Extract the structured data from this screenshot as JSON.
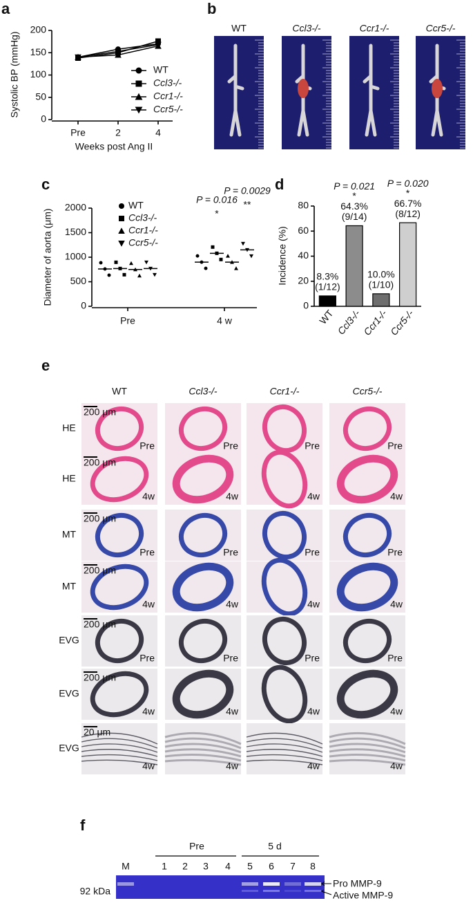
{
  "panel_labels": [
    "a",
    "b",
    "c",
    "d",
    "e",
    "f"
  ],
  "chart_data": [
    {
      "type": "line",
      "ylabel": "Systolic BP (mmHg)",
      "xlabel": "Weeks post Ang II",
      "categories": [
        "Pre",
        "2",
        "4"
      ],
      "ylim": [
        0,
        200
      ],
      "yticks": [
        0,
        50,
        100,
        150,
        200
      ],
      "series": [
        {
          "name": "WT",
          "marker": "circle",
          "color": "#000000",
          "values": [
            140,
            158,
            170
          ]
        },
        {
          "name": "Ccl3-/-",
          "marker": "square",
          "color": "#000000",
          "values": [
            138,
            150,
            176
          ]
        },
        {
          "name": "Ccr1-/-",
          "marker": "triangle",
          "color": "#000000",
          "values": [
            140,
            145,
            165
          ]
        },
        {
          "name": "Ccr5-/-",
          "marker": "triangle-down",
          "color": "#000000",
          "values": [
            140,
            153,
            168
          ]
        }
      ]
    },
    {
      "type": "dot",
      "ylabel": "Diameter of aorta (μm)",
      "categories": [
        "Pre",
        "4 w"
      ],
      "ylim": [
        0,
        2000
      ],
      "yticks": [
        0,
        500,
        1000,
        1500,
        2000
      ],
      "series": [
        {
          "name": "WT",
          "marker": "circle",
          "color": "#000000",
          "values": [
            760,
            900
          ]
        },
        {
          "name": "Ccl3-/-",
          "marker": "square",
          "color": "#000000",
          "values": [
            770,
            1080
          ],
          "p_label": "P = 0.016",
          "sig": "*"
        },
        {
          "name": "Ccr1-/-",
          "marker": "triangle",
          "color": "#000000",
          "values": [
            750,
            900
          ]
        },
        {
          "name": "Ccr5-/-",
          "marker": "triangle-down",
          "color": "#000000",
          "values": [
            770,
            1150
          ],
          "p_label": "P = 0.0029",
          "sig": "**"
        }
      ]
    },
    {
      "type": "bar",
      "ylabel": "Incidence (%)",
      "categories": [
        "WT",
        "Ccl3-/-",
        "Ccr1-/-",
        "Ccr5-/-"
      ],
      "values": [
        8.3,
        64.3,
        10.0,
        66.7
      ],
      "value_labels": [
        "8.3%",
        "64.3%",
        "10.0%",
        "66.7%"
      ],
      "counts": [
        "(1/12)",
        "(9/14)",
        "(1/10)",
        "(8/12)"
      ],
      "colors": [
        "#000000",
        "#8c8c8c",
        "#6e6e6e",
        "#cfcfcf"
      ],
      "p_labels": [
        null,
        "P = 0.021",
        null,
        "P = 0.020"
      ],
      "sig": [
        null,
        "*",
        null,
        "*"
      ],
      "ylim": [
        0,
        80
      ],
      "yticks": [
        0,
        20,
        40,
        60,
        80
      ]
    }
  ],
  "photos": {
    "labels": [
      "WT",
      "Ccl3-/-",
      "Ccr1-/-",
      "Ccr5-/-"
    ]
  },
  "histology": {
    "columns": [
      "WT",
      "Ccl3-/-",
      "Ccr1-/-",
      "Ccr5-/-"
    ],
    "rows": [
      {
        "stain": "HE",
        "stage": "Pre",
        "scale": "200 μm"
      },
      {
        "stain": "HE",
        "stage": "4w",
        "scale": "200 μm"
      },
      {
        "stain": "MT",
        "stage": "Pre",
        "scale": "200 μm"
      },
      {
        "stain": "MT",
        "stage": "4w",
        "scale": "200 μm"
      },
      {
        "stain": "EVG",
        "stage": "Pre",
        "scale": "200 μm"
      },
      {
        "stain": "EVG",
        "stage": "4w",
        "scale": "200 μm"
      },
      {
        "stain": "EVG",
        "stage": "4w",
        "scale": "20 μm"
      }
    ]
  },
  "gel": {
    "groups": [
      "Pre",
      "5 d"
    ],
    "lanes": [
      "M",
      "1",
      "2",
      "3",
      "4",
      "5",
      "6",
      "7",
      "8"
    ],
    "marker": "92 kDa",
    "bands": [
      "Pro MMP-9",
      "Active MMP-9"
    ]
  }
}
